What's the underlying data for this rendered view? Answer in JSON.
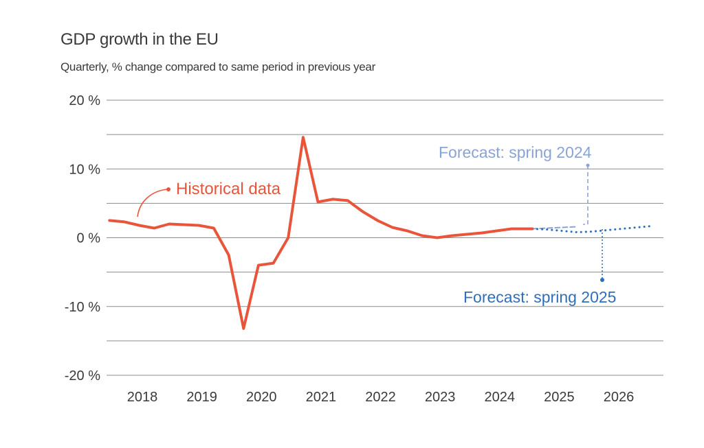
{
  "chart_data": {
    "type": "line",
    "title": "GDP growth in the EU",
    "subtitle": "Quarterly, % change compared to same period in previous year",
    "xlabel": "",
    "ylabel": "",
    "ylim": [
      -20,
      20
    ],
    "xlim": [
      2017.4,
      2026.75
    ],
    "grid": true,
    "y_ticks": [
      {
        "value": 20,
        "label": "20 %"
      },
      {
        "value": 10,
        "label": "10 %"
      },
      {
        "value": 0,
        "label": "0 %"
      },
      {
        "value": -10,
        "label": "-10 %"
      },
      {
        "value": -20,
        "label": "-20 %"
      }
    ],
    "y_gridlines": [
      20,
      15,
      10,
      5,
      0,
      -5,
      -10,
      -15,
      -20
    ],
    "x_ticks": [
      {
        "value": 2018,
        "label": "2018"
      },
      {
        "value": 2019,
        "label": "2019"
      },
      {
        "value": 2020,
        "label": "2020"
      },
      {
        "value": 2021,
        "label": "2021"
      },
      {
        "value": 2022,
        "label": "2022"
      },
      {
        "value": 2023,
        "label": "2023"
      },
      {
        "value": 2024,
        "label": "2024"
      },
      {
        "value": 2025,
        "label": "2025"
      },
      {
        "value": 2026,
        "label": "2026"
      }
    ],
    "series": [
      {
        "name": "Historical data",
        "color": "#e8553a",
        "style": "solid",
        "x": [
          2017.45,
          2017.7,
          2017.95,
          2018.2,
          2018.45,
          2018.7,
          2018.95,
          2019.2,
          2019.45,
          2019.7,
          2019.95,
          2020.2,
          2020.45,
          2020.7,
          2020.95,
          2021.2,
          2021.45,
          2021.7,
          2021.95,
          2022.2,
          2022.45,
          2022.7,
          2022.95,
          2023.2,
          2023.45,
          2023.7,
          2023.95,
          2024.2,
          2024.45,
          2024.55
        ],
        "y": [
          2.5,
          2.3,
          1.8,
          1.4,
          2.0,
          1.9,
          1.8,
          1.4,
          -2.5,
          -13.2,
          -4.0,
          -3.7,
          0.0,
          14.6,
          5.2,
          5.6,
          5.4,
          3.8,
          2.5,
          1.5,
          1.0,
          0.3,
          0.0,
          0.3,
          0.5,
          0.7,
          1.0,
          1.3,
          1.3,
          1.3
        ]
      },
      {
        "name": "Forecast: spring 2024",
        "color": "#8aa3d6",
        "style": "dashed",
        "x": [
          2024.55,
          2024.8,
          2025.05,
          2025.3
        ],
        "y": [
          1.3,
          1.4,
          1.5,
          1.6
        ]
      },
      {
        "name": "Forecast: spring 2025",
        "color": "#2f6ebd",
        "style": "dotted",
        "x": [
          2024.55,
          2024.8,
          2025.05,
          2025.3,
          2025.55,
          2025.8,
          2026.05,
          2026.3,
          2026.55
        ],
        "y": [
          1.3,
          1.2,
          1.0,
          0.8,
          0.9,
          1.1,
          1.3,
          1.5,
          1.7
        ]
      }
    ],
    "annotations": [
      {
        "text": "Historical data",
        "series": "Historical data"
      },
      {
        "text": "Forecast: spring 2024",
        "series": "Forecast: spring 2024"
      },
      {
        "text": "Forecast: spring 2025",
        "series": "Forecast: spring 2025"
      }
    ]
  }
}
